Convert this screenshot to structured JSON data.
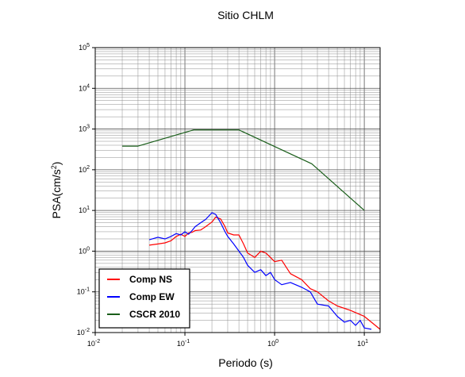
{
  "chart_data": {
    "type": "line",
    "title": "Sitio CHLM",
    "xlabel": "Periodo (s)",
    "ylabel_base": "PSA(cm/s",
    "ylabel_sup": "2",
    "ylabel_end": ")",
    "x_scale": "log",
    "y_scale": "log",
    "xlim": [
      0.01,
      15
    ],
    "ylim": [
      0.01,
      100000
    ],
    "grid": true,
    "legend_position": "bottom-left",
    "x_ticks": [
      {
        "base": "10",
        "exp": "-2"
      },
      {
        "base": "10",
        "exp": "-1"
      },
      {
        "base": "10",
        "exp": "0"
      },
      {
        "base": "10",
        "exp": "1"
      }
    ],
    "y_ticks": [
      {
        "base": "10",
        "exp": "-2"
      },
      {
        "base": "10",
        "exp": "-1"
      },
      {
        "base": "10",
        "exp": "0"
      },
      {
        "base": "10",
        "exp": "1"
      },
      {
        "base": "10",
        "exp": "2"
      },
      {
        "base": "10",
        "exp": "3"
      },
      {
        "base": "10",
        "exp": "4"
      },
      {
        "base": "10",
        "exp": "5"
      }
    ],
    "series": [
      {
        "name": "Comp NS",
        "color": "#ff0000",
        "x": [
          0.04,
          0.05,
          0.06,
          0.07,
          0.08,
          0.09,
          0.1,
          0.11,
          0.12,
          0.13,
          0.15,
          0.17,
          0.2,
          0.22,
          0.25,
          0.28,
          0.3,
          0.35,
          0.4,
          0.45,
          0.5,
          0.6,
          0.7,
          0.8,
          0.9,
          1.0,
          1.2,
          1.5,
          2.0,
          2.5,
          3.0,
          4.0,
          5.0,
          7.0,
          10.0,
          15.0
        ],
        "y": [
          1.4,
          1.5,
          1.6,
          1.8,
          2.3,
          2.6,
          2.3,
          2.8,
          2.9,
          3.2,
          3.3,
          4.0,
          5.2,
          6.8,
          6.2,
          4.0,
          2.8,
          2.5,
          2.5,
          1.5,
          0.9,
          0.7,
          1.0,
          0.9,
          0.7,
          0.55,
          0.6,
          0.28,
          0.2,
          0.12,
          0.1,
          0.06,
          0.045,
          0.035,
          0.025,
          0.012
        ]
      },
      {
        "name": "Comp EW",
        "color": "#0000ff",
        "x": [
          0.04,
          0.05,
          0.06,
          0.07,
          0.08,
          0.09,
          0.1,
          0.11,
          0.12,
          0.13,
          0.15,
          0.17,
          0.2,
          0.22,
          0.25,
          0.28,
          0.3,
          0.35,
          0.4,
          0.45,
          0.5,
          0.6,
          0.7,
          0.8,
          0.9,
          1.0,
          1.2,
          1.5,
          2.0,
          2.5,
          3.0,
          4.0,
          5.0,
          6.0,
          7.0,
          8.0,
          9.0,
          10.0,
          12.0
        ],
        "y": [
          1.9,
          2.2,
          2.0,
          2.3,
          2.7,
          2.5,
          3.0,
          2.6,
          3.2,
          4.0,
          5.0,
          6.0,
          8.8,
          8.0,
          5.0,
          3.0,
          2.3,
          1.5,
          1.0,
          0.7,
          0.45,
          0.3,
          0.35,
          0.25,
          0.3,
          0.2,
          0.15,
          0.17,
          0.13,
          0.1,
          0.05,
          0.045,
          0.025,
          0.018,
          0.02,
          0.015,
          0.02,
          0.013,
          0.012
        ]
      },
      {
        "name": "CSCR 2010",
        "color": "#1a5e1a",
        "x": [
          0.02,
          0.03,
          0.125,
          0.4,
          2.6,
          10.0
        ],
        "y": [
          380,
          380,
          950,
          950,
          140,
          10
        ]
      }
    ]
  }
}
